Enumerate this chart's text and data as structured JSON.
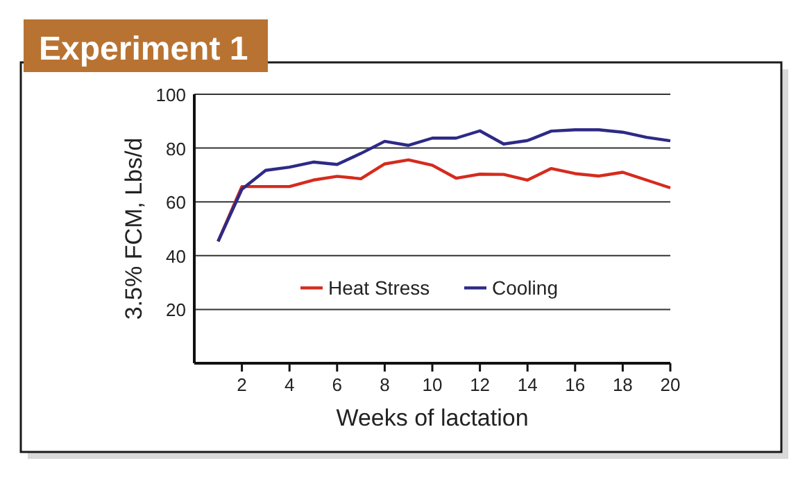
{
  "chart_data": {
    "type": "line",
    "title": "Experiment 1",
    "xlabel": "Weeks of lactation",
    "ylabel": "3.5% FCM, Lbs/d",
    "x": [
      1,
      2,
      3,
      4,
      5,
      6,
      7,
      8,
      9,
      10,
      11,
      12,
      13,
      14,
      15,
      16,
      17,
      18,
      19,
      20
    ],
    "series": [
      {
        "name": "Heat Stress",
        "color": "#d52b1e",
        "values": [
          45.3,
          65.7,
          65.7,
          65.7,
          68.1,
          69.5,
          68.6,
          74.1,
          75.6,
          73.6,
          68.8,
          70.3,
          70.2,
          68.1,
          72.4,
          70.5,
          69.6,
          71,
          68.1,
          65.2
        ]
      },
      {
        "name": "Cooling",
        "color": "#2e2a86",
        "values": [
          45.3,
          64.7,
          71.7,
          72.9,
          74.8,
          73.9,
          78,
          82.5,
          81,
          83.7,
          83.7,
          86.4,
          81.5,
          82.8,
          86.3,
          86.8,
          86.8,
          85.9,
          84,
          82.7
        ]
      }
    ],
    "xlim": [
      0,
      20
    ],
    "xticks": [
      2,
      4,
      6,
      8,
      10,
      12,
      14,
      16,
      18,
      20
    ],
    "ylim": [
      0,
      100
    ],
    "yticks": [
      20,
      40,
      60,
      80,
      100
    ],
    "grid": "y",
    "legend": "bottom",
    "marker": "none",
    "line_style": "solid"
  }
}
